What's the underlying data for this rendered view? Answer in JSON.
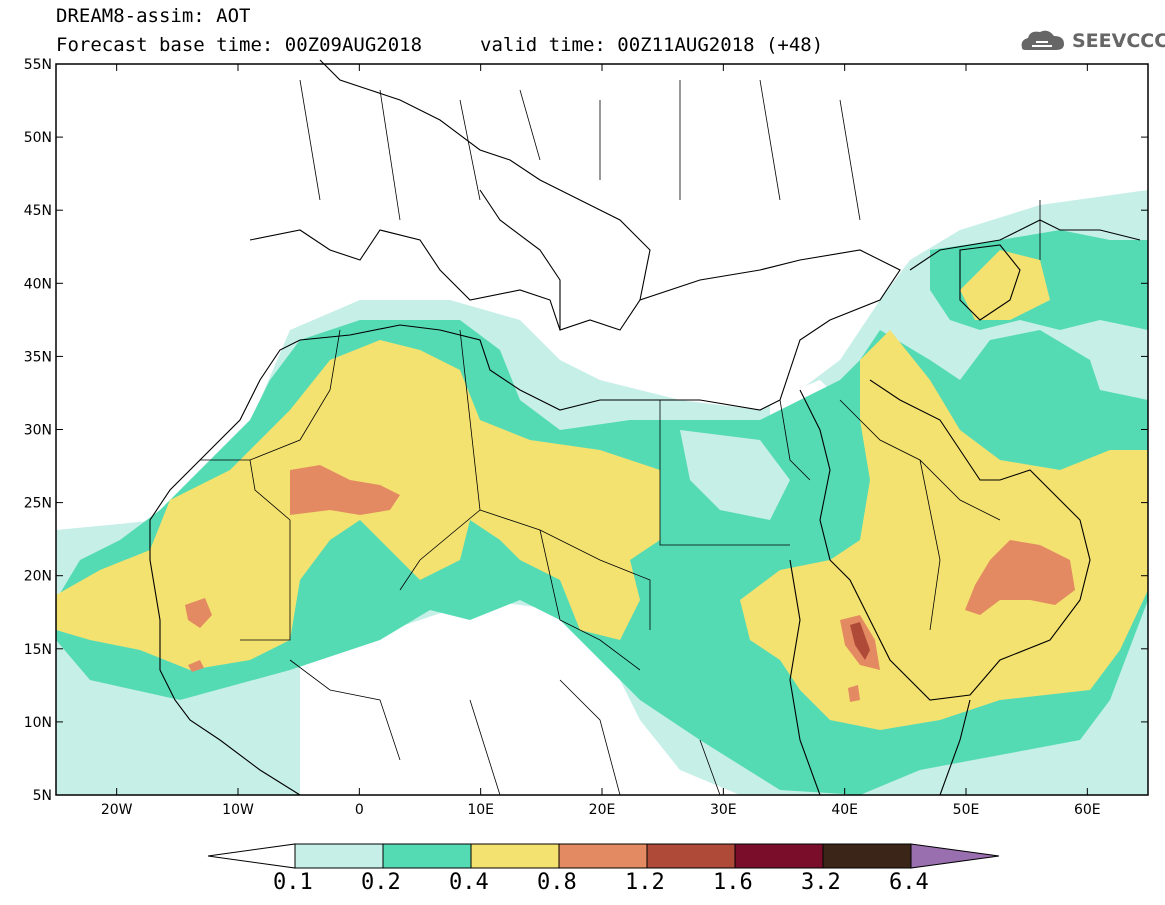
{
  "header": {
    "title_line1": "DREAM8-assim: AOT",
    "title_line2_left": "Forecast base time: 00Z09AUG2018",
    "title_line2_right": "valid time: 00Z11AUG2018 (+48)",
    "logo_text": "SEEVCCC"
  },
  "map": {
    "lon_range": [
      -25,
      65
    ],
    "lat_range": [
      5,
      55
    ],
    "lat_ticks": [
      "55N",
      "50N",
      "45N",
      "40N",
      "35N",
      "30N",
      "25N",
      "20N",
      "15N",
      "10N",
      "5N"
    ],
    "lon_ticks": [
      "20W",
      "10W",
      "0",
      "10E",
      "20E",
      "30E",
      "40E",
      "50E",
      "60E"
    ]
  },
  "colorbar": {
    "labels": [
      "0.1",
      "0.2",
      "0.4",
      "0.8",
      "1.2",
      "1.6",
      "3.2",
      "6.4"
    ],
    "colors": [
      "#c6efe8",
      "#55dbb4",
      "#f3e270",
      "#e48a62",
      "#b04a38",
      "#7a0e2a",
      "#3a2518",
      "#9a6fb0"
    ]
  }
}
